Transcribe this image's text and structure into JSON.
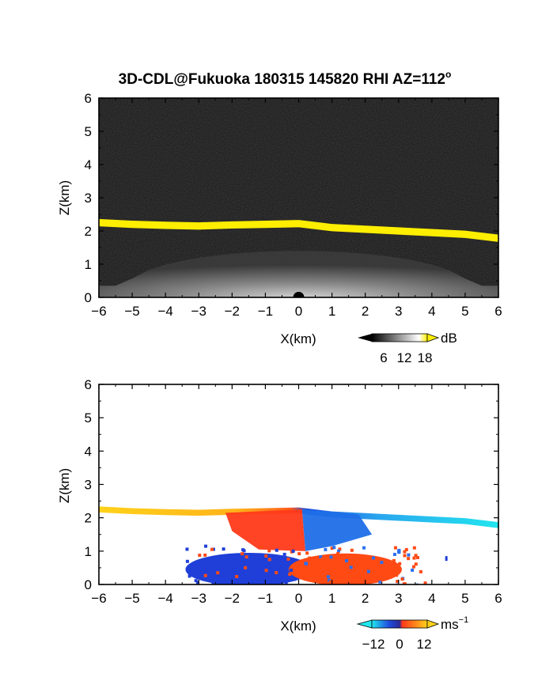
{
  "title": {
    "text": "3D-CDL@Fukuoka 180315 145820 RHI AZ=112",
    "superscript": "o"
  },
  "colors": {
    "background": "#ffffff",
    "snr_panel_bg": "#111111",
    "aerosol_top_layer": "#ffee00",
    "doppler_negative": "#1f4fe0",
    "doppler_positive": "#ff3a1a",
    "doppler_far_negative": "#22e6ee",
    "doppler_far_positive": "#ffd21a"
  },
  "chart_data": [
    {
      "type": "heatmap",
      "panel": "snr",
      "xlabel": "X(km)",
      "ylabel": "Z(km)",
      "xlim": [
        -6,
        6
      ],
      "ylim": [
        0,
        6
      ],
      "xticks": [
        "-6",
        "-5",
        "-4",
        "-3",
        "-2",
        "-1",
        "0",
        "1",
        "2",
        "3",
        "4",
        "5",
        "6"
      ],
      "yticks": [
        "0",
        "1",
        "2",
        "3",
        "4",
        "5",
        "6"
      ],
      "grid": false,
      "colorbar": {
        "unit": "dB",
        "ticks": [
          "6",
          "12",
          "18"
        ],
        "range": [
          0,
          21
        ]
      },
      "layer_top": {
        "x": [
          -6,
          -5,
          -4,
          -3,
          -2,
          -1,
          0,
          1,
          2,
          3,
          4,
          5,
          6
        ],
        "z": [
          2.25,
          2.2,
          2.17,
          2.15,
          2.18,
          2.2,
          2.22,
          2.1,
          2.05,
          2.0,
          1.95,
          1.9,
          1.78
        ]
      }
    },
    {
      "type": "heatmap",
      "panel": "doppler",
      "xlabel": "X(km)",
      "ylabel": "Z(km)",
      "xlim": [
        -6,
        6
      ],
      "ylim": [
        0,
        6
      ],
      "xticks": [
        "-6",
        "-5",
        "-4",
        "-3",
        "-2",
        "-1",
        "0",
        "1",
        "2",
        "3",
        "4",
        "5",
        "6"
      ],
      "yticks": [
        "0",
        "1",
        "2",
        "3",
        "4",
        "5",
        "6"
      ],
      "grid": false,
      "colorbar": {
        "unit": "ms",
        "unit_exponent": "−1",
        "ticks": [
          "−12",
          "0",
          "12"
        ],
        "range": [
          -15,
          15
        ]
      },
      "layer_top": {
        "x": [
          -6,
          -5,
          -4,
          -3,
          -2,
          -1,
          0,
          1,
          2,
          3,
          4,
          5,
          6
        ],
        "z": [
          2.25,
          2.2,
          2.17,
          2.15,
          2.18,
          2.2,
          2.22,
          2.1,
          2.05,
          2.0,
          1.95,
          1.9,
          1.78
        ]
      }
    }
  ]
}
